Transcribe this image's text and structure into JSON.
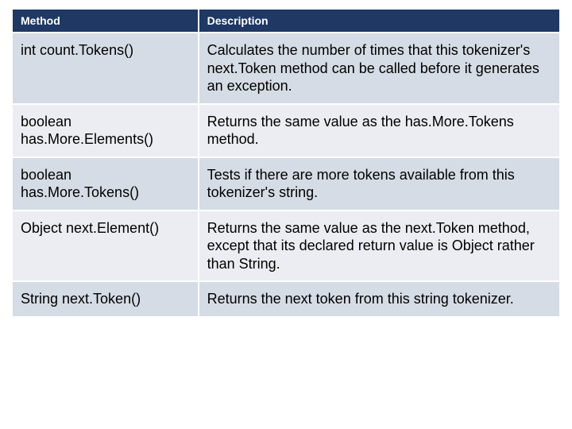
{
  "table": {
    "columns": [
      "Method",
      "Description"
    ],
    "rows": [
      [
        "int count.Tokens()",
        "Calculates the number of times that this tokenizer's next.Token method can be called before it generates an exception."
      ],
      [
        "boolean has.More.Elements()",
        "Returns the same value as the has.More.Tokens method."
      ],
      [
        "boolean has.More.Tokens()",
        "Tests if there are more tokens available from this tokenizer's string."
      ],
      [
        "Object next.Element()",
        "Returns the same value as the next.Token method, except that its declared return value is Object rather than String."
      ],
      [
        "String next.Token()",
        "Returns the next token from this string tokenizer."
      ]
    ],
    "header_bg": "#1f3864",
    "header_fg": "#ffffff",
    "header_fontsize": 14,
    "body_fontsize": 18,
    "row_bg_odd": "#d6dce5",
    "row_bg_even": "#ebedf2",
    "border_color": "#ffffff",
    "border_width": 2,
    "text_color": "#000000"
  }
}
